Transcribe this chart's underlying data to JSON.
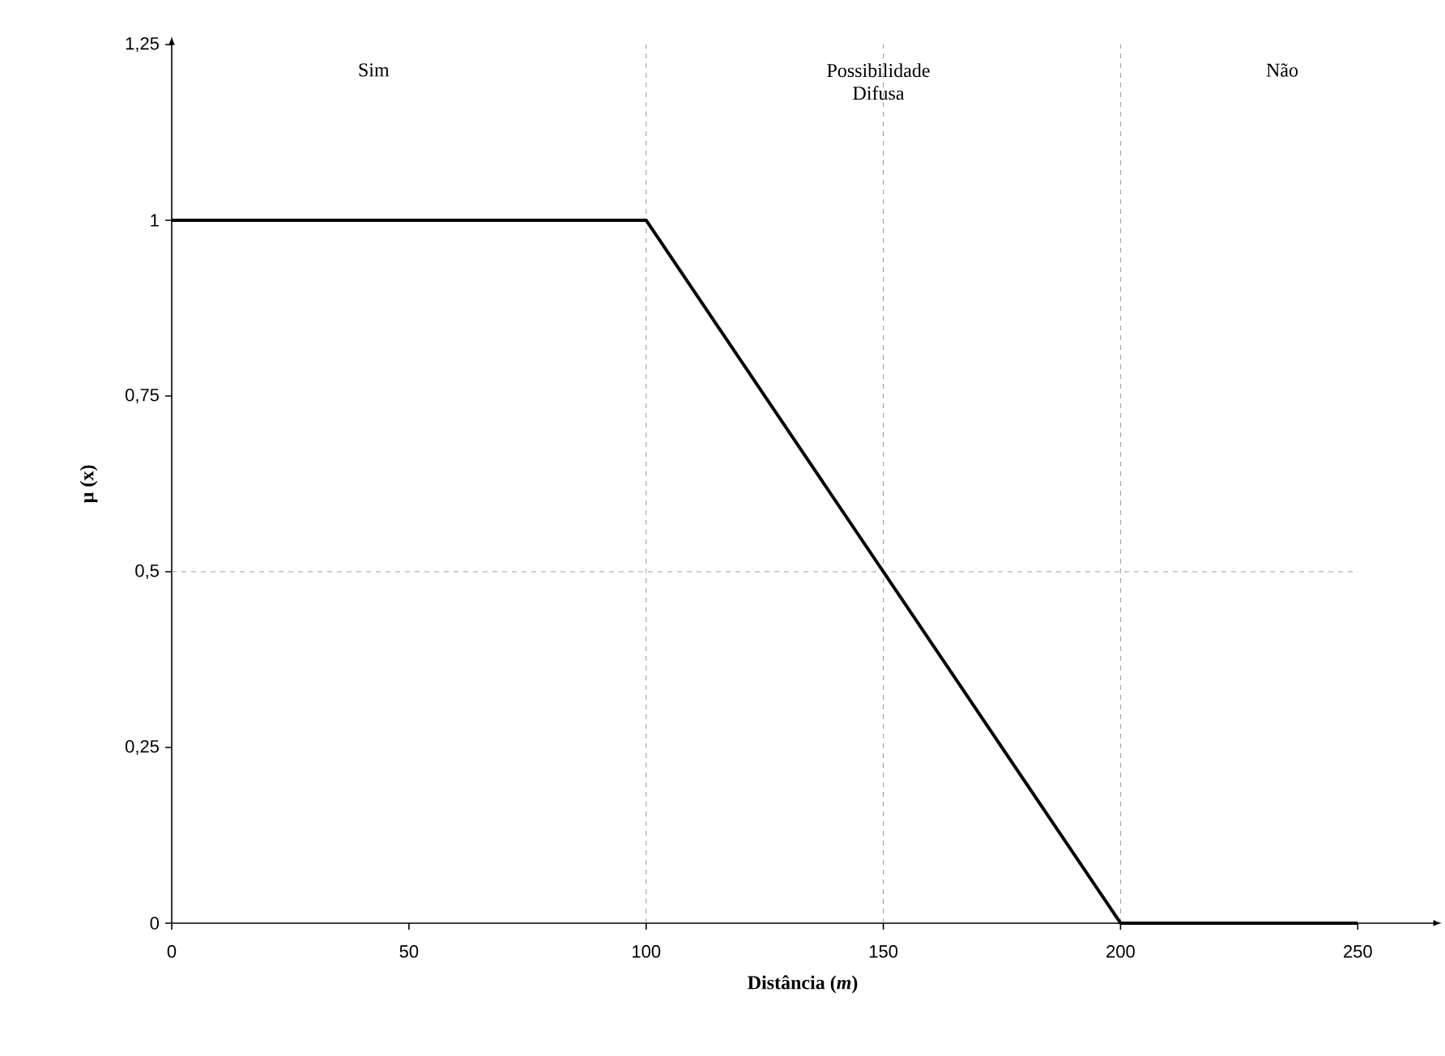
{
  "chart_data": {
    "type": "line",
    "xlabel": "Distância (*m*)",
    "ylabel": "µ (x)",
    "x": [
      0,
      100,
      200,
      250
    ],
    "series": [
      {
        "color": "#000000",
        "values": [
          1,
          1,
          0,
          0
        ]
      }
    ],
    "xlim": [
      0,
      266
    ],
    "ylim": [
      0,
      1.25
    ],
    "xticks": [
      0,
      50,
      100,
      150,
      200,
      250
    ],
    "yticks": [
      0,
      {
        "value": 0.25,
        "label": "0,25"
      },
      {
        "value": 0.5,
        "label": "0,5"
      },
      {
        "value": 0.75,
        "label": "0,75"
      },
      1,
      {
        "value": 1.25,
        "label": "1,25"
      }
    ],
    "ref_lines": [
      {
        "axis": "x",
        "value": 100,
        "color": "#808080",
        "line_style": "dashed"
      },
      {
        "axis": "x",
        "value": 200,
        "color": "#808080",
        "line_style": "dashed"
      },
      {
        "axis": "x",
        "value": 150,
        "color": "#808080",
        "line_style": "dashed"
      },
      {
        "axis": "y",
        "value": 0.5,
        "color": "#808080",
        "line_style": "dashed"
      }
    ],
    "annotations": [
      "Sim",
      "Possibilidade Difusa",
      "Não"
    ],
    "marker": "none",
    "line_style": "solid",
    "grid": false
  }
}
